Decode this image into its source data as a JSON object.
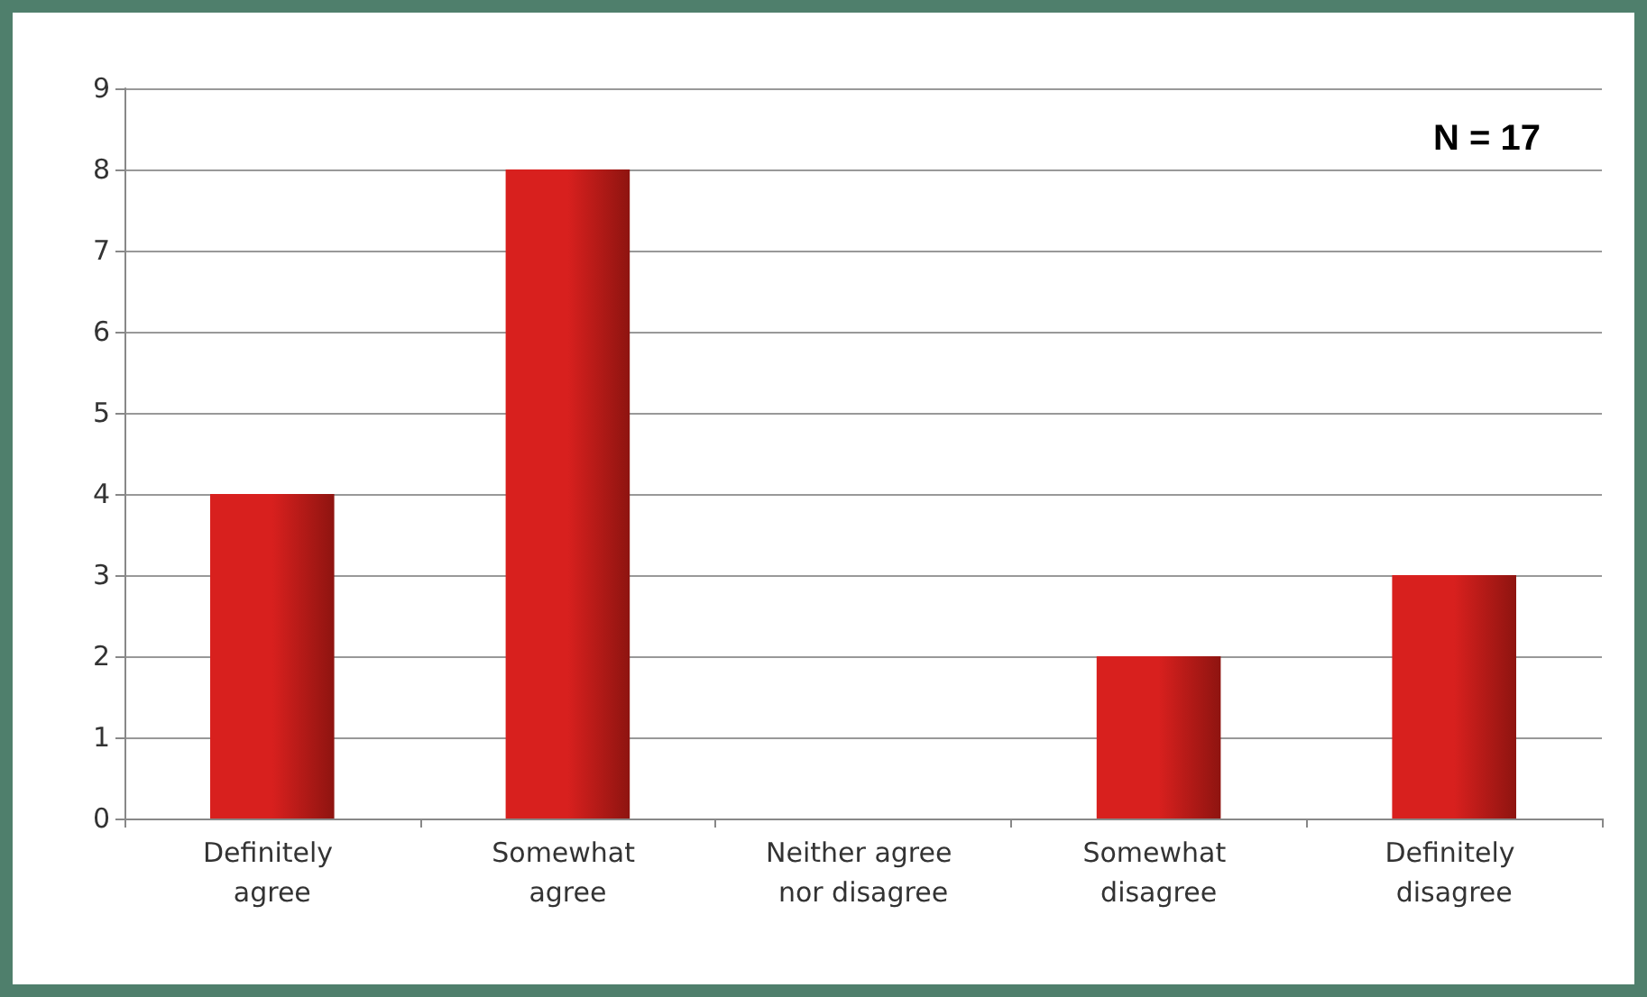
{
  "chart_data": {
    "type": "bar",
    "categories": [
      "Definitely agree",
      "Somewhat agree",
      "Neither agree nor disagree",
      "Somewhat disagree",
      "Definitely disagree"
    ],
    "values": [
      4,
      8,
      0,
      2,
      3
    ],
    "color": "#d8201e",
    "ylim": [
      0,
      9
    ],
    "yticks": [
      0,
      1,
      2,
      3,
      4,
      5,
      6,
      7,
      8,
      9
    ],
    "grid": "y",
    "annotations": [
      "N = 17"
    ]
  }
}
